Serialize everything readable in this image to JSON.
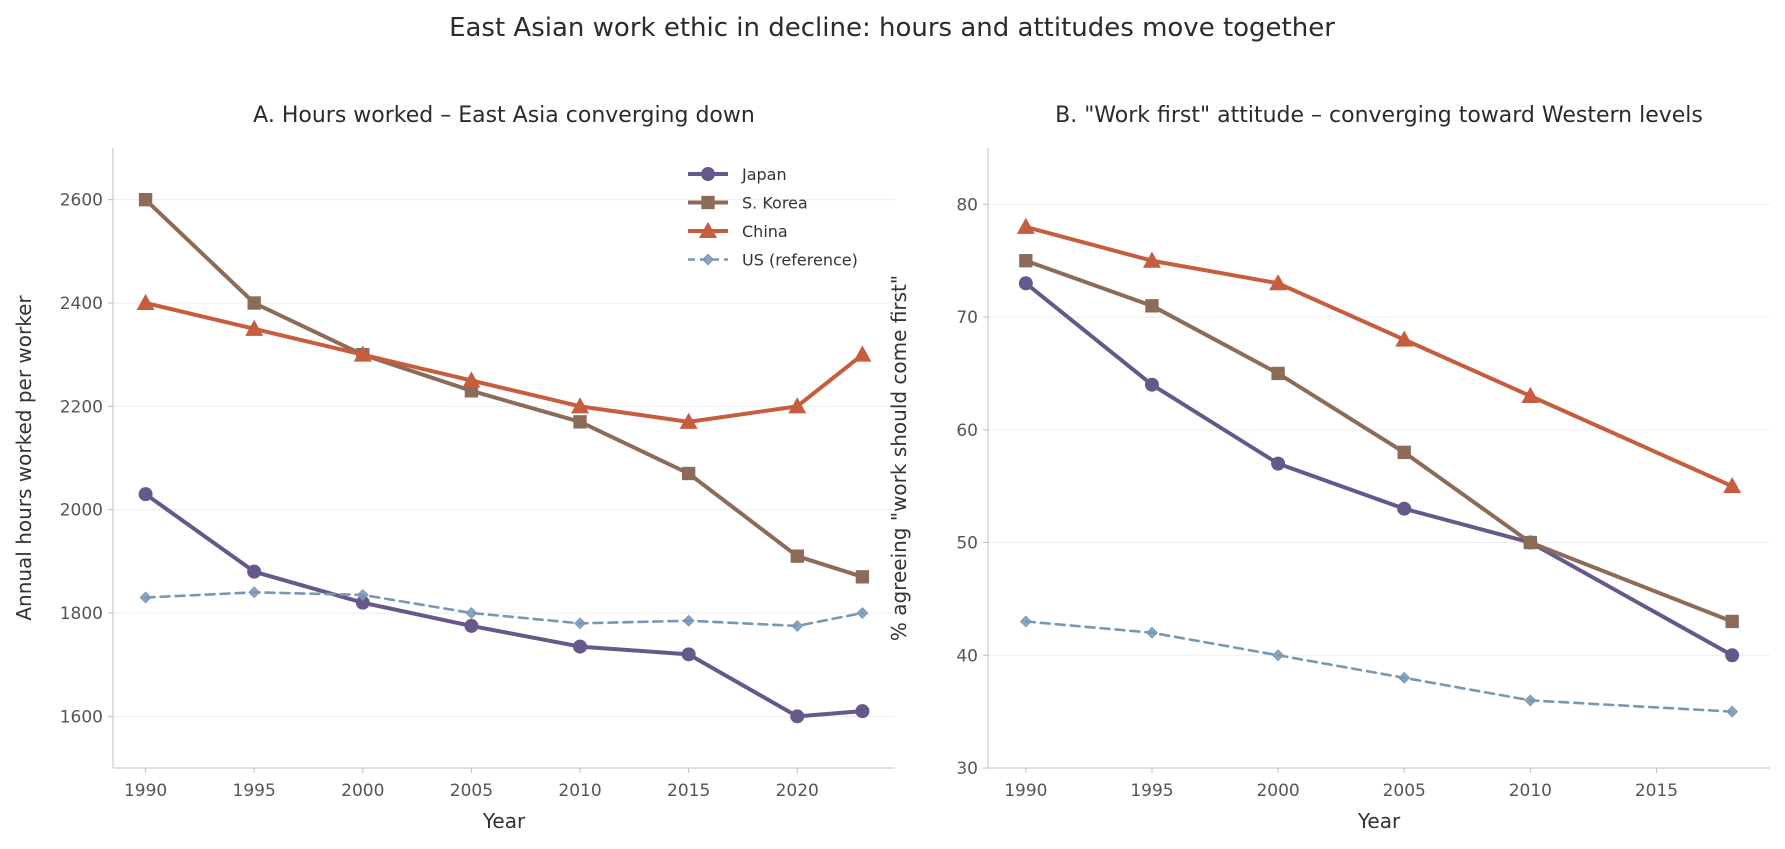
{
  "figure_title": "East Asian work ethic in decline: hours and attitudes move together",
  "chart_data": [
    {
      "type": "line",
      "title": "A. Hours worked – East Asia converging down",
      "xlabel": "Year",
      "ylabel": "Annual hours worked per worker",
      "xlim": [
        1988.5,
        2024.5
      ],
      "ylim": [
        1500,
        2700
      ],
      "xticks": [
        1990,
        1995,
        2000,
        2005,
        2010,
        2015,
        2020
      ],
      "yticks": [
        1600,
        1800,
        2000,
        2200,
        2400,
        2600
      ],
      "grid": "horizontal",
      "legend_position": "top-right",
      "series": [
        {
          "name": "Japan",
          "color": "#66588a",
          "marker": "circle",
          "style": "solid",
          "x": [
            1990,
            1995,
            2000,
            2005,
            2010,
            2015,
            2020,
            2023
          ],
          "y": [
            2030,
            1880,
            1820,
            1775,
            1735,
            1720,
            1600,
            1610
          ]
        },
        {
          "name": "S. Korea",
          "color": "#8c6b58",
          "marker": "square",
          "style": "solid",
          "x": [
            1990,
            1995,
            2000,
            2005,
            2010,
            2015,
            2020,
            2023
          ],
          "y": [
            2600,
            2400,
            2300,
            2230,
            2170,
            2070,
            1910,
            1870
          ]
        },
        {
          "name": "China",
          "color": "#c65d3e",
          "marker": "triangle",
          "style": "solid",
          "x": [
            1990,
            1995,
            2000,
            2005,
            2010,
            2015,
            2020,
            2023
          ],
          "y": [
            2400,
            2350,
            2300,
            2250,
            2200,
            2170,
            2200,
            2300
          ]
        },
        {
          "name": "US (reference)",
          "color": "#7897b5",
          "marker": "diamond",
          "style": "dashed",
          "x": [
            1990,
            1995,
            2000,
            2005,
            2010,
            2015,
            2020,
            2023
          ],
          "y": [
            1830,
            1840,
            1835,
            1800,
            1780,
            1785,
            1775,
            1800
          ]
        }
      ]
    },
    {
      "type": "line",
      "title": "B. \"Work first\" attitude – converging toward Western levels",
      "xlabel": "Year",
      "ylabel": "% agreeing \"work should come first\"",
      "xlim": [
        1988.5,
        2019.5
      ],
      "ylim": [
        30,
        85
      ],
      "xticks": [
        1990,
        1995,
        2000,
        2005,
        2010,
        2015
      ],
      "yticks": [
        30,
        40,
        50,
        60,
        70,
        80
      ],
      "grid": "horizontal",
      "series": [
        {
          "name": "Japan",
          "color": "#66588a",
          "marker": "circle",
          "style": "solid",
          "x": [
            1990,
            1995,
            2000,
            2005,
            2010,
            2018
          ],
          "y": [
            73,
            64,
            57,
            53,
            50,
            40
          ]
        },
        {
          "name": "S. Korea",
          "color": "#8c6b58",
          "marker": "square",
          "style": "solid",
          "x": [
            1990,
            1995,
            2000,
            2005,
            2010,
            2018
          ],
          "y": [
            75,
            71,
            65,
            58,
            50,
            43
          ]
        },
        {
          "name": "China",
          "color": "#c65d3e",
          "marker": "triangle",
          "style": "solid",
          "x": [
            1990,
            1995,
            2000,
            2005,
            2010,
            2018
          ],
          "y": [
            78,
            75,
            73,
            68,
            63,
            55
          ]
        },
        {
          "name": "US (reference)",
          "color": "#7897b5",
          "marker": "diamond",
          "style": "dashed",
          "x": [
            1990,
            1995,
            2000,
            2005,
            2010,
            2018
          ],
          "y": [
            43,
            42,
            40,
            38,
            36,
            35
          ]
        }
      ]
    }
  ]
}
